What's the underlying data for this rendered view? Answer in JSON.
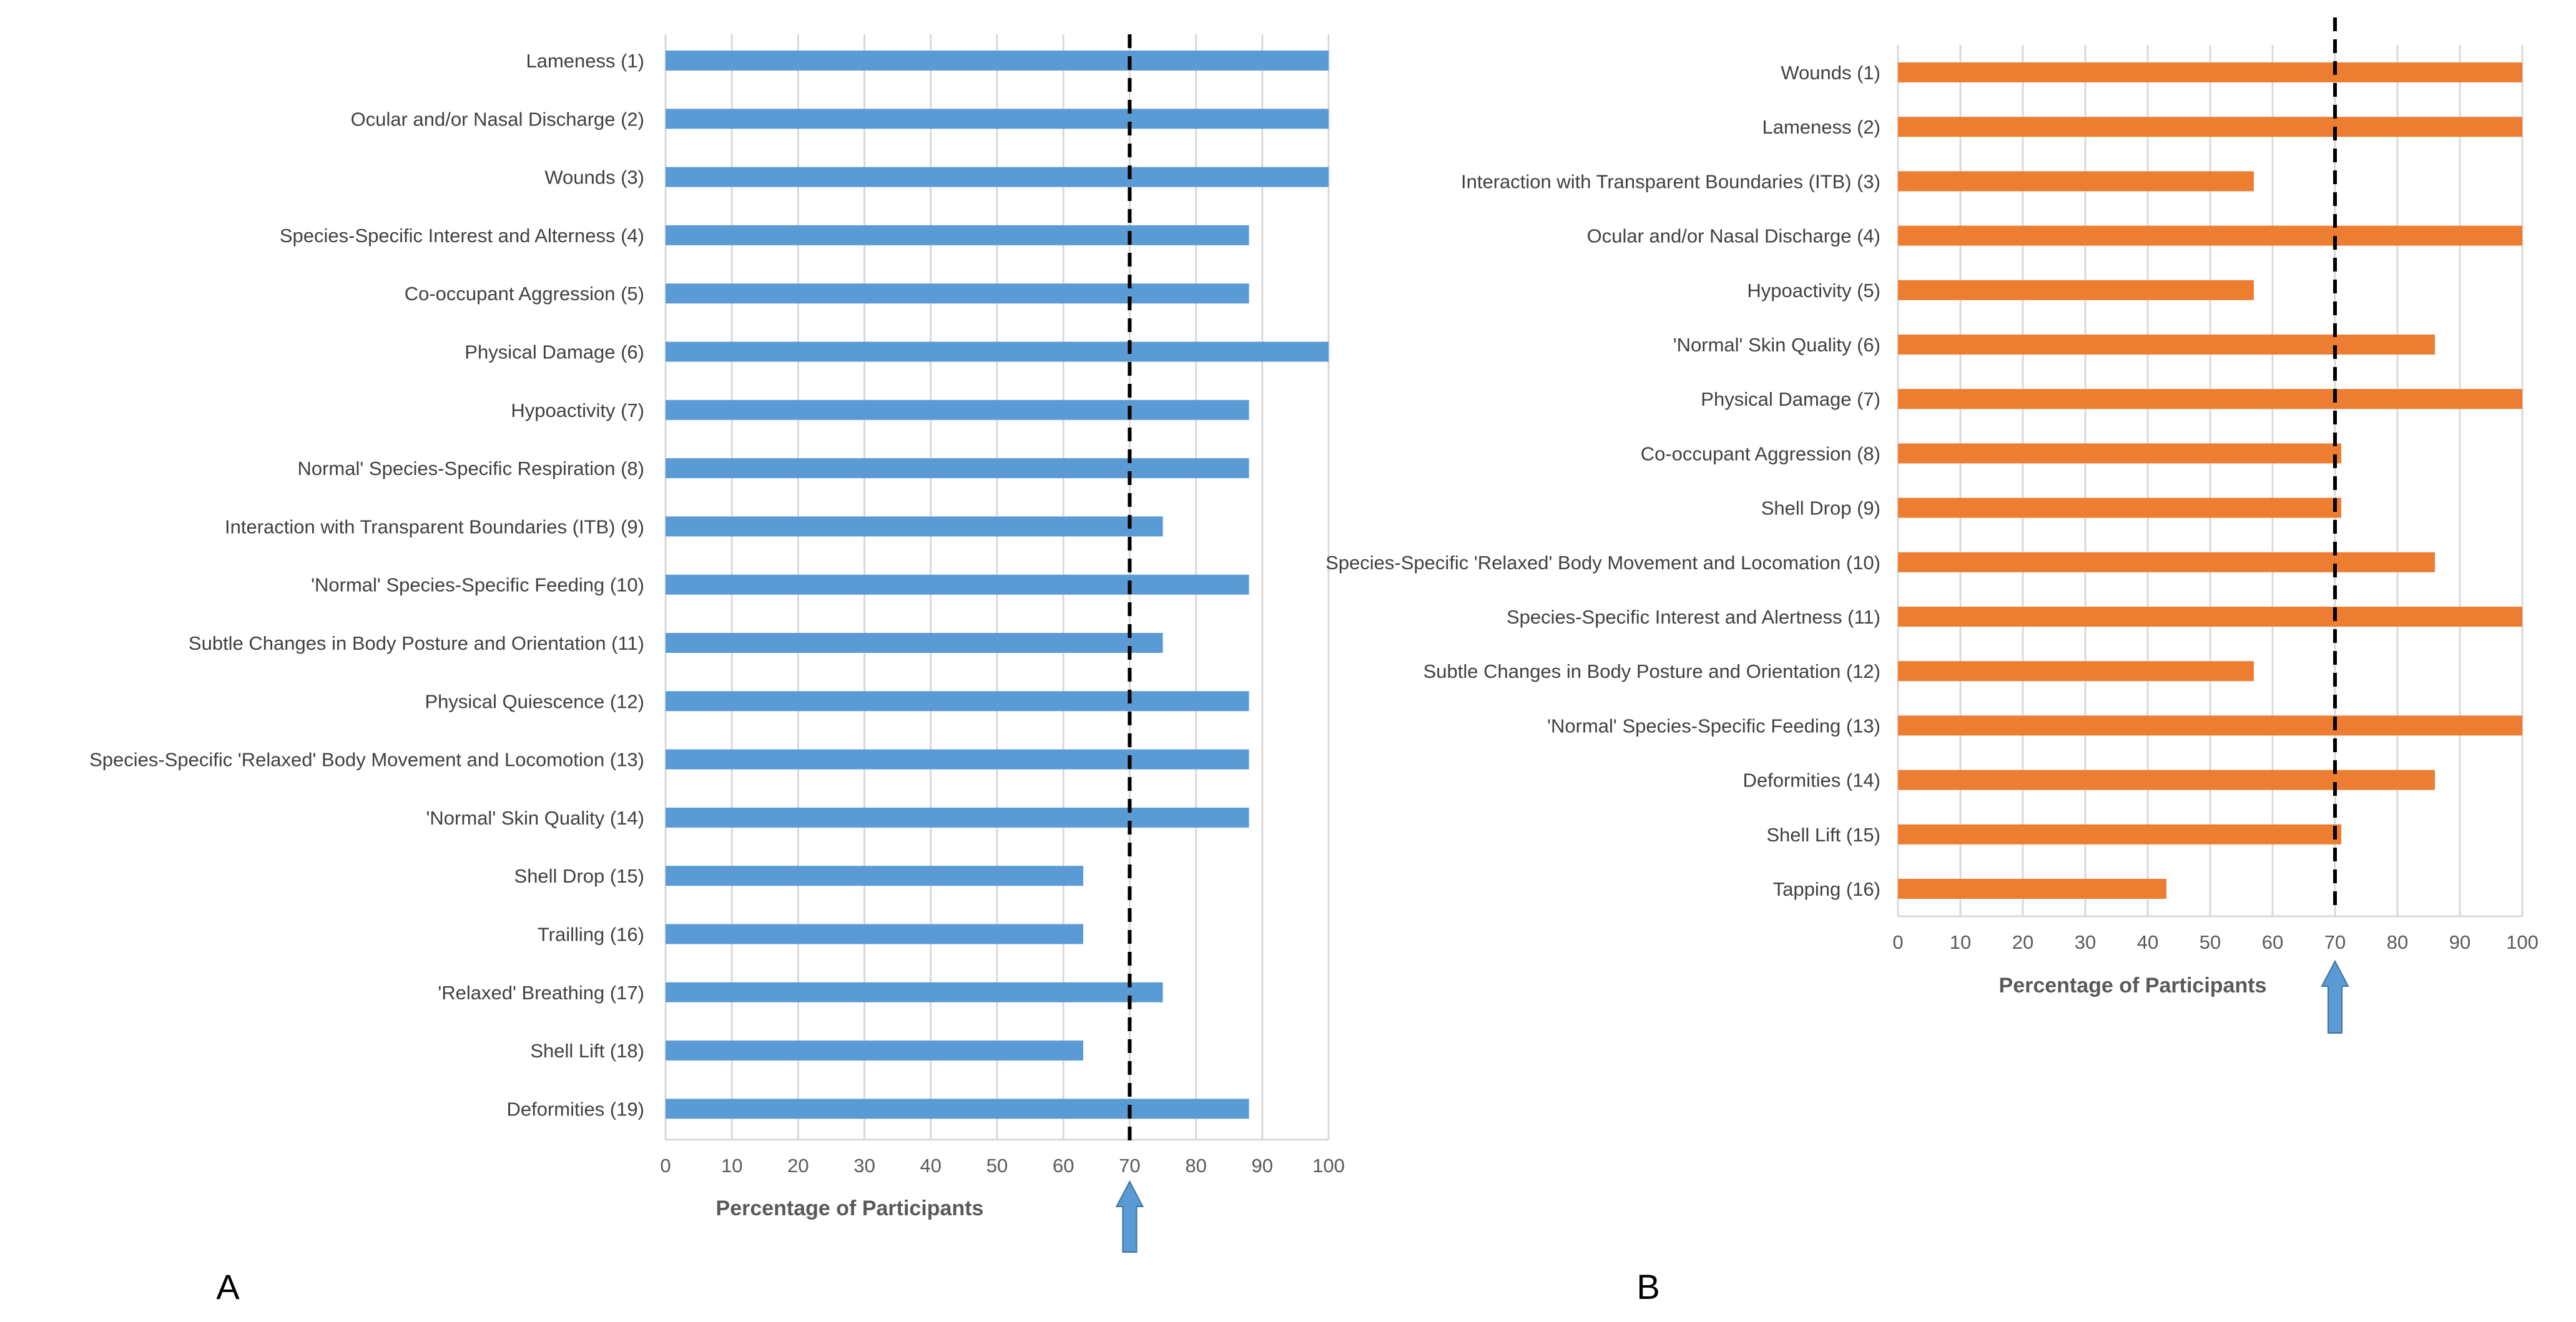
{
  "chart_data": [
    {
      "panel_label": "A",
      "type": "bar",
      "orientation": "horizontal",
      "color": "#5B9BD5",
      "categories": [
        "Lameness (1)",
        "Ocular and/or Nasal Discharge (2)",
        "Wounds (3)",
        "Species-Specific Interest and Alterness (4)",
        "Co-occupant Aggression (5)",
        "Physical Damage (6)",
        "Hypoactivity (7)",
        "Normal' Species-Specific Respiration (8)",
        "Interaction with Transparent Boundaries (ITB) (9)",
        "'Normal' Species-Specific Feeding (10)",
        "Subtle Changes in Body Posture and Orientation (11)",
        "Physical Quiescence (12)",
        "Species-Specific 'Relaxed' Body Movement and Locomotion (13)",
        "'Normal' Skin Quality (14)",
        "Shell Drop (15)",
        "Trailling (16)",
        "'Relaxed' Breathing (17)",
        "Shell Lift (18)",
        "Deformities (19)"
      ],
      "values": [
        100,
        100,
        100,
        88,
        88,
        100,
        88,
        88,
        75,
        88,
        75,
        88,
        88,
        88,
        63,
        63,
        75,
        63,
        88
      ],
      "xlabel": "Percentage of Participants",
      "xlim": [
        0,
        100
      ],
      "xticks": [
        "0",
        "10",
        "20",
        "30",
        "40",
        "50",
        "60",
        "70",
        "80",
        "90",
        "100"
      ],
      "threshold": 70,
      "grid": "vertical"
    },
    {
      "panel_label": "B",
      "type": "bar",
      "orientation": "horizontal",
      "color": "#ED7D31",
      "categories": [
        "Wounds (1)",
        "Lameness (2)",
        "Interaction with Transparent Boundaries (ITB) (3)",
        "Ocular and/or Nasal Discharge (4)",
        "Hypoactivity (5)",
        "'Normal' Skin Quality (6)",
        "Physical Damage (7)",
        "Co-occupant Aggression (8)",
        "Shell Drop (9)",
        "Species-Specific 'Relaxed' Body Movement and Locomation (10)",
        "Species-Specific Interest and Alertness (11)",
        "Subtle Changes in Body Posture and Orientation (12)",
        "'Normal' Species-Specific Feeding (13)",
        "Deformities (14)",
        "Shell Lift (15)",
        "Tapping (16)"
      ],
      "values": [
        100,
        100,
        57,
        100,
        57,
        86,
        100,
        71,
        71,
        86,
        100,
        57,
        100,
        86,
        71,
        43
      ],
      "xlabel": "Percentage of Participants",
      "xlim": [
        0,
        100
      ],
      "xticks": [
        "0",
        "10",
        "20",
        "30",
        "40",
        "50",
        "60",
        "70",
        "80",
        "90",
        "100"
      ],
      "threshold": 70,
      "grid": "vertical"
    }
  ],
  "colors": {
    "threshold_arrow": "#5B9BD5",
    "gridline": "#D9D9D9",
    "threshold_line": "#000000"
  }
}
